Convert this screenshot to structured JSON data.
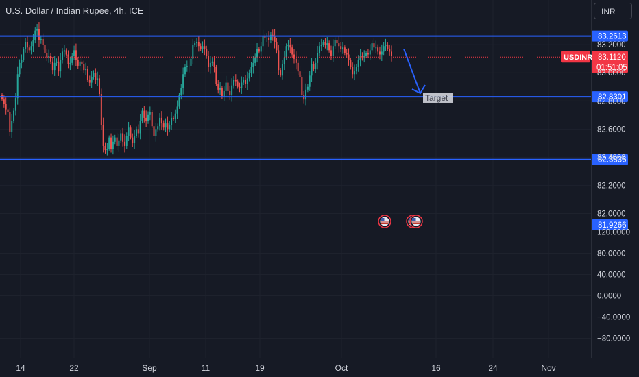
{
  "header": {
    "title": "U.S. Dollar / Indian Rupee, 4h, ICE",
    "currency_button": "INR"
  },
  "colors": {
    "background": "#161a25",
    "up": "#26a69a",
    "down": "#ef5350",
    "level_line": "#2962ff",
    "last_price": "#f23645",
    "axis_text": "#d1d4dc"
  },
  "chart_data": {
    "type": "candlestick",
    "instrument": "USDINR",
    "interval": "4h",
    "price_axis": {
      "ylim": [
        81.9,
        83.44
      ],
      "ticks": [
        {
          "value": 83.2,
          "label": "83.2000"
        },
        {
          "value": 83.0,
          "label": "83.0000"
        },
        {
          "value": 82.8,
          "label": "82.8000"
        },
        {
          "value": 82.6,
          "label": "82.6000"
        },
        {
          "value": 82.4,
          "label": "82.4000"
        },
        {
          "value": 82.2,
          "label": "82.2000"
        },
        {
          "value": 82.0,
          "label": "82.0000"
        }
      ]
    },
    "oscillator_axis": {
      "ticks": [
        {
          "value": 120,
          "label": "120.0000"
        },
        {
          "value": 80,
          "label": "80.0000"
        },
        {
          "value": 40,
          "label": "40.0000"
        },
        {
          "value": 0,
          "label": "0.0000"
        },
        {
          "value": -40,
          "label": "−40.0000"
        },
        {
          "value": -80,
          "label": "−80.0000"
        }
      ]
    },
    "x_ticks": [
      "14",
      "22",
      "Sep",
      "11",
      "19",
      "Oct",
      "16",
      "24",
      "Nov"
    ],
    "levels": [
      {
        "name": "resistance",
        "value": 83.2613,
        "label": "83.2613"
      },
      {
        "name": "target",
        "value": 82.8301,
        "label": "82.8301"
      },
      {
        "name": "support",
        "value": 82.3836,
        "label": "82.3836"
      }
    ],
    "last_price": {
      "symbol": "USDINR",
      "value": 83.112,
      "label": "83.1120",
      "countdown": "01:51:05"
    },
    "bottom_label": {
      "value": 81.9266,
      "label": "81.9266"
    },
    "annotation": {
      "text": "Target"
    },
    "closes": [
      82.81,
      82.78,
      82.74,
      82.72,
      82.58,
      82.66,
      82.73,
      82.82,
      82.99,
      83.07,
      83.09,
      83.17,
      83.22,
      83.18,
      83.16,
      83.19,
      83.23,
      83.3,
      83.31,
      83.23,
      83.24,
      83.2,
      83.14,
      83.11,
      83.12,
      83.08,
      83.02,
      83.07,
      83.08,
      83.01,
      83.09,
      83.15,
      83.16,
      83.13,
      83.06,
      83.07,
      83.12,
      83.16,
      83.09,
      83.05,
      83.08,
      83.06,
      83.02,
      83.03,
      82.95,
      82.93,
      82.97,
      83.0,
      82.95,
      82.96,
      82.85,
      82.63,
      82.48,
      82.45,
      82.46,
      82.54,
      82.46,
      82.51,
      82.54,
      82.48,
      82.52,
      82.57,
      82.51,
      82.48,
      82.55,
      82.61,
      82.54,
      82.5,
      82.55,
      82.6,
      82.57,
      82.66,
      82.73,
      82.68,
      82.66,
      82.7,
      82.72,
      82.62,
      82.55,
      82.6,
      82.62,
      82.68,
      82.64,
      82.61,
      82.64,
      82.6,
      82.63,
      82.68,
      82.67,
      82.71,
      82.76,
      82.84,
      82.89,
      82.99,
      83.04,
      83.05,
      83.05,
      83.1,
      83.2,
      83.21,
      83.22,
      83.19,
      83.17,
      83.19,
      83.17,
      83.12,
      83.04,
      83.07,
      83.08,
      83.04,
      82.92,
      82.88,
      82.89,
      82.83,
      82.87,
      82.93,
      82.87,
      82.84,
      82.91,
      82.95,
      82.94,
      82.9,
      82.89,
      82.93,
      82.95,
      82.92,
      82.96,
      83.0,
      83.04,
      83.07,
      83.11,
      83.17,
      83.15,
      83.19,
      83.26,
      83.25,
      83.25,
      83.23,
      83.27,
      83.26,
      83.22,
      83.16,
      83.02,
      82.98,
      83.06,
      83.11,
      83.19,
      83.2,
      83.18,
      83.13,
      83.1,
      83.07,
      83.01,
      82.97,
      82.84,
      82.81,
      82.88,
      82.9,
      82.98,
      83.06,
      83.03,
      83.07,
      83.14,
      83.19,
      83.2,
      83.22,
      83.2,
      83.21,
      83.16,
      83.12,
      83.19,
      83.23,
      83.21,
      83.19,
      83.17,
      83.18,
      83.14,
      83.13,
      83.09,
      83.04,
      82.99,
      83.01,
      83.04,
      83.09,
      83.12,
      83.11,
      83.12,
      83.14,
      83.13,
      83.16,
      83.21,
      83.18,
      83.18,
      83.15,
      83.13,
      83.15,
      83.19,
      83.2,
      83.17,
      83.15,
      83.12
    ]
  },
  "event_markers": [
    {
      "name": "us-event-flag-1"
    },
    {
      "name": "us-event-flag-2"
    }
  ]
}
